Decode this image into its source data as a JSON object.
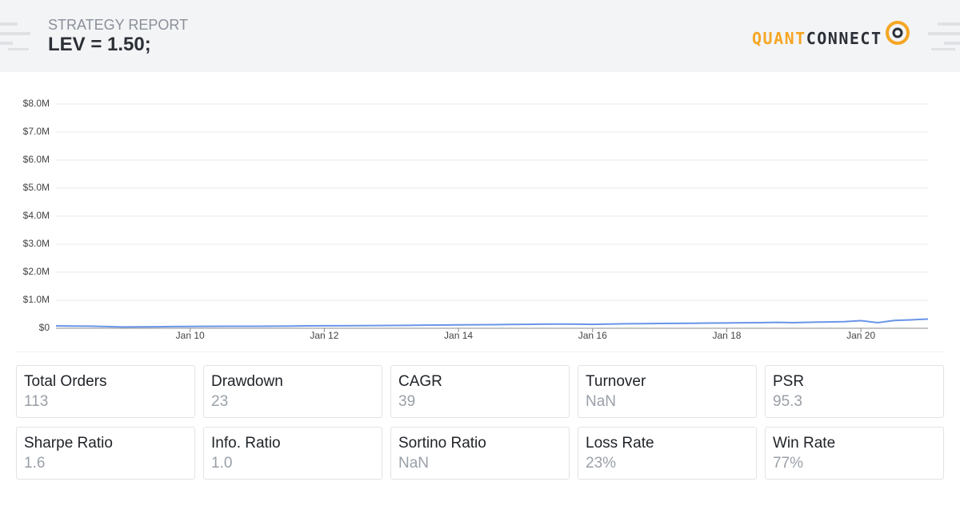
{
  "header": {
    "subtitle": "STRATEGY REPORT",
    "title": "LEV = 1.50;",
    "logo": [
      "QUANT",
      "CONNECT"
    ]
  },
  "chart_data": {
    "type": "line",
    "color": "#6a95e8",
    "grid": true,
    "categories": [
      null,
      null,
      null,
      null,
      null,
      null,
      null,
      null,
      "Jan 10",
      null,
      null,
      null,
      null,
      null,
      null,
      null,
      "Jan 12",
      null,
      null,
      null,
      null,
      null,
      null,
      null,
      "Jan 14",
      null,
      null,
      null,
      null,
      null,
      null,
      null,
      "Jan 16",
      null,
      null,
      null,
      null,
      null,
      null,
      null,
      "Jan 18",
      null,
      null,
      null,
      null,
      null,
      null,
      null,
      "Jan 20",
      null,
      null,
      null,
      null
    ],
    "values": [
      85000,
      80000,
      75000,
      60000,
      45000,
      50000,
      55000,
      60000,
      65000,
      68000,
      70000,
      72000,
      70000,
      75000,
      80000,
      85000,
      90000,
      88000,
      92000,
      95000,
      100000,
      105000,
      110000,
      115000,
      120000,
      125000,
      130000,
      135000,
      140000,
      145000,
      150000,
      145000,
      140000,
      150000,
      160000,
      165000,
      170000,
      175000,
      180000,
      185000,
      190000,
      195000,
      200000,
      210000,
      200000,
      215000,
      225000,
      235000,
      270000,
      200000,
      280000,
      300000,
      330000
    ],
    "ylim": [
      0,
      8000000
    ],
    "yticks": [
      {
        "value": 0,
        "label": "$0"
      },
      {
        "value": 1000000,
        "label": "$1.0M"
      },
      {
        "value": 2000000,
        "label": "$2.0M"
      },
      {
        "value": 3000000,
        "label": "$3.0M"
      },
      {
        "value": 4000000,
        "label": "$4.0M"
      },
      {
        "value": 5000000,
        "label": "$5.0M"
      },
      {
        "value": 6000000,
        "label": "$6.0M"
      },
      {
        "value": 7000000,
        "label": "$7.0M"
      },
      {
        "value": 8000000,
        "label": "$8.0M"
      }
    ]
  },
  "stats": [
    {
      "label": "Total Orders",
      "value": "113"
    },
    {
      "label": "Drawdown",
      "value": "23"
    },
    {
      "label": "CAGR",
      "value": "39"
    },
    {
      "label": "Turnover",
      "value": "NaN"
    },
    {
      "label": "PSR",
      "value": "95.3"
    },
    {
      "label": "Sharpe Ratio",
      "value": "1.6"
    },
    {
      "label": "Info. Ratio",
      "value": "1.0"
    },
    {
      "label": "Sortino Ratio",
      "value": "NaN"
    },
    {
      "label": "Loss Rate",
      "value": "23%"
    },
    {
      "label": "Win Rate",
      "value": "77%"
    }
  ]
}
